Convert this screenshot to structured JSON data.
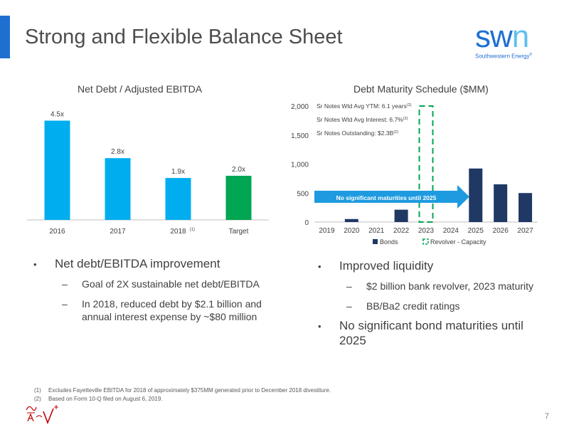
{
  "slide": {
    "title": "Strong and Flexible Balance Sheet",
    "page_number": "7"
  },
  "logo": {
    "word_main": "sw",
    "word_accent": "n",
    "subtitle": "Southwestern Energy",
    "trademark": "®"
  },
  "left_chart": {
    "title": "Net Debt / Adjusted EBITDA"
  },
  "right_chart": {
    "title": "Debt Maturity Schedule ($MM)",
    "notes": [
      "Sr Notes Wtd Avg YTM: 6.1 years",
      "Sr Notes Wtd Avg Interest: 6.7%",
      "Sr Notes Outstanding: $2.3B"
    ],
    "note_sup": "(2)",
    "arrow_text": "No significant maturities until 2025",
    "legend": {
      "bonds": "Bonds",
      "revolver": "Revolver - Capacity"
    }
  },
  "chart_data": [
    {
      "type": "bar",
      "title": "Net Debt / Adjusted EBITDA",
      "categories": [
        "2016",
        "2017",
        "2018",
        "Target"
      ],
      "category_superscripts": [
        "",
        "",
        "(1)",
        ""
      ],
      "values": [
        4.5,
        2.8,
        1.9,
        2.0
      ],
      "data_labels": [
        "4.5x",
        "2.8x",
        "1.9x",
        "2.0x"
      ],
      "colors": [
        "#00aeef",
        "#00aeef",
        "#00aeef",
        "#00a651"
      ],
      "ylim": [
        0,
        5
      ]
    },
    {
      "type": "bar",
      "title": "Debt Maturity Schedule ($MM)",
      "categories": [
        "2019",
        "2020",
        "2021",
        "2022",
        "2023",
        "2024",
        "2025",
        "2026",
        "2027"
      ],
      "series": [
        {
          "name": "Bonds",
          "values": [
            0,
            52,
            0,
            213,
            0,
            0,
            923,
            650,
            500
          ],
          "color": "#1f3864"
        },
        {
          "name": "Revolver - Capacity",
          "values": [
            0,
            0,
            0,
            0,
            2000,
            0,
            0,
            0,
            0
          ],
          "color": "#00a651",
          "style": "dashed-outline"
        }
      ],
      "yticks": [
        "0",
        "500",
        "1,000",
        "1,500",
        "2,000"
      ],
      "ylim": [
        0,
        2000
      ],
      "legend_position": "bottom"
    }
  ],
  "left_bullets": {
    "main": "Net debt/EBITDA improvement",
    "dash": "–",
    "subs": [
      "Goal of 2X sustainable net debt/EBITDA",
      "In 2018, reduced debt by $2.1 billion and annual interest expense by ~$80 million"
    ]
  },
  "right_bullets": {
    "main1": "Improved liquidity",
    "dash": "–",
    "subs": [
      "$2 billion bank revolver, 2023 maturity",
      "BB/Ba2 credit ratings"
    ],
    "main2": "No significant bond maturities until 2025"
  },
  "footnotes": [
    {
      "num": "(1)",
      "text": "Excludes Fayetteville EBITDA for 2018 of approximately $375MM generated prior to December 2018 divestiture."
    },
    {
      "num": "(2)",
      "text": "Based on Form 10-Q filed on August 6, 2019."
    }
  ]
}
